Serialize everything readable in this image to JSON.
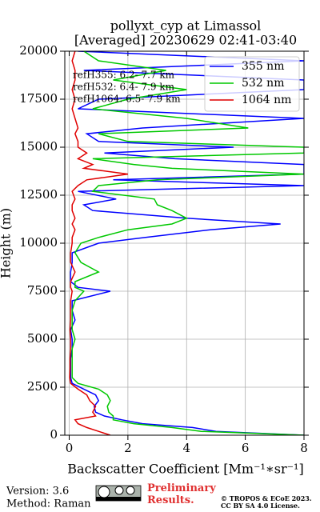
{
  "chart_data": {
    "type": "line",
    "title": "pollyxt_cyp at Limassol",
    "subtitle": "[Averaged] 20230629 02:41-03:40",
    "x_label": "Backscatter Coefficient [Mm⁻¹∗sr⁻¹]",
    "y_label": "Height (m)",
    "orientation": "vertical",
    "heights": [
      0,
      200,
      400,
      600,
      800,
      1000,
      1200,
      1500,
      1800,
      2100,
      2400,
      2700,
      3000,
      3500,
      4000,
      4500,
      5000,
      5500,
      6000,
      6500,
      7000,
      7500,
      7700,
      8000,
      8500,
      9000,
      9500,
      10000,
      10300,
      10700,
      11000,
      11300,
      11700,
      12000,
      12300,
      12700,
      13000,
      13300,
      13600,
      13900,
      14100,
      14400,
      14700,
      15000,
      15300,
      15700,
      16000,
      16500,
      17000,
      17500,
      18000,
      18500,
      19000,
      19500,
      20000
    ],
    "series": [
      {
        "name": "355 nm",
        "color": "#0000ff",
        "values": [
          8,
          5,
          4.2,
          2.5,
          1.8,
          1.2,
          0.9,
          0.85,
          1.0,
          0.9,
          0.5,
          0.1,
          0.05,
          0.05,
          0.05,
          0.1,
          0.1,
          0.05,
          0.2,
          0.1,
          0.1,
          1.4,
          0.3,
          0.05,
          0.05,
          0.1,
          0.1,
          1.0,
          2.6,
          4.8,
          7.2,
          4.0,
          0.8,
          0.5,
          1.6,
          0.3,
          8,
          1.5,
          8,
          8,
          8,
          3.6,
          1.2,
          5.6,
          1,
          0.6,
          2.5,
          8,
          0.3,
          1.0,
          8,
          8,
          0.5,
          8,
          0.3
        ]
      },
      {
        "name": "532 nm",
        "color": "#00c800",
        "values": [
          8,
          4.5,
          3.5,
          2.2,
          1.5,
          1.5,
          1.35,
          1.3,
          1.4,
          1.3,
          1.0,
          0.3,
          0.1,
          0.1,
          0.1,
          0.1,
          0.2,
          0.1,
          0.1,
          0.1,
          0.2,
          0.5,
          0.2,
          0.2,
          1.0,
          0.4,
          0.2,
          0.4,
          1.0,
          2.0,
          3.5,
          4.0,
          3.5,
          3.0,
          2.9,
          0.8,
          1.0,
          3.0,
          8,
          3.5,
          2.2,
          0.8,
          8,
          8,
          2.0,
          1.0,
          6.1,
          4.0,
          0.8,
          2.0,
          4.0,
          1.5,
          3.3,
          1.0,
          0.5
        ]
      },
      {
        "name": "1064 nm",
        "color": "#e00000",
        "values": [
          1.4,
          1.0,
          0.6,
          0.3,
          0.2,
          0.9,
          0.8,
          0.9,
          0.7,
          0.6,
          0.3,
          0.05,
          0.02,
          0.03,
          0.03,
          0.05,
          0.05,
          0.03,
          0.05,
          0.05,
          0.05,
          0.1,
          0.05,
          0.05,
          0.2,
          0.05,
          0.05,
          0.1,
          0.1,
          0.2,
          0.1,
          0.2,
          0.1,
          0.1,
          0.2,
          0.1,
          0.3,
          0.6,
          2.0,
          0.5,
          0.8,
          0.3,
          0.6,
          0.3,
          0.3,
          0.2,
          0.3,
          0.2,
          0.1,
          0.2,
          0.1,
          0.2,
          0.2,
          0.1,
          0.2
        ]
      }
    ],
    "xlim": [
      -0.15,
      8
    ],
    "xticks": [
      0,
      2,
      4,
      6,
      8
    ],
    "ylim": [
      0,
      20000
    ],
    "yticks": [
      0,
      2500,
      5000,
      7500,
      10000,
      12500,
      15000,
      17500,
      20000
    ],
    "grid": true,
    "legend": "upper right",
    "annotations": [
      "refH355:  6.2- 7.7 km",
      "refH532:  6.4- 7.9 km",
      "refH1064:  6.5- 7.9 km"
    ],
    "footer": {
      "version": "Version: 3.6",
      "method": "Method: Raman",
      "notice": "Preliminary\nResults.",
      "copyright": "© TROPOS & ECoE 2023.",
      "license": "CC BY SA 4.0 License."
    }
  }
}
